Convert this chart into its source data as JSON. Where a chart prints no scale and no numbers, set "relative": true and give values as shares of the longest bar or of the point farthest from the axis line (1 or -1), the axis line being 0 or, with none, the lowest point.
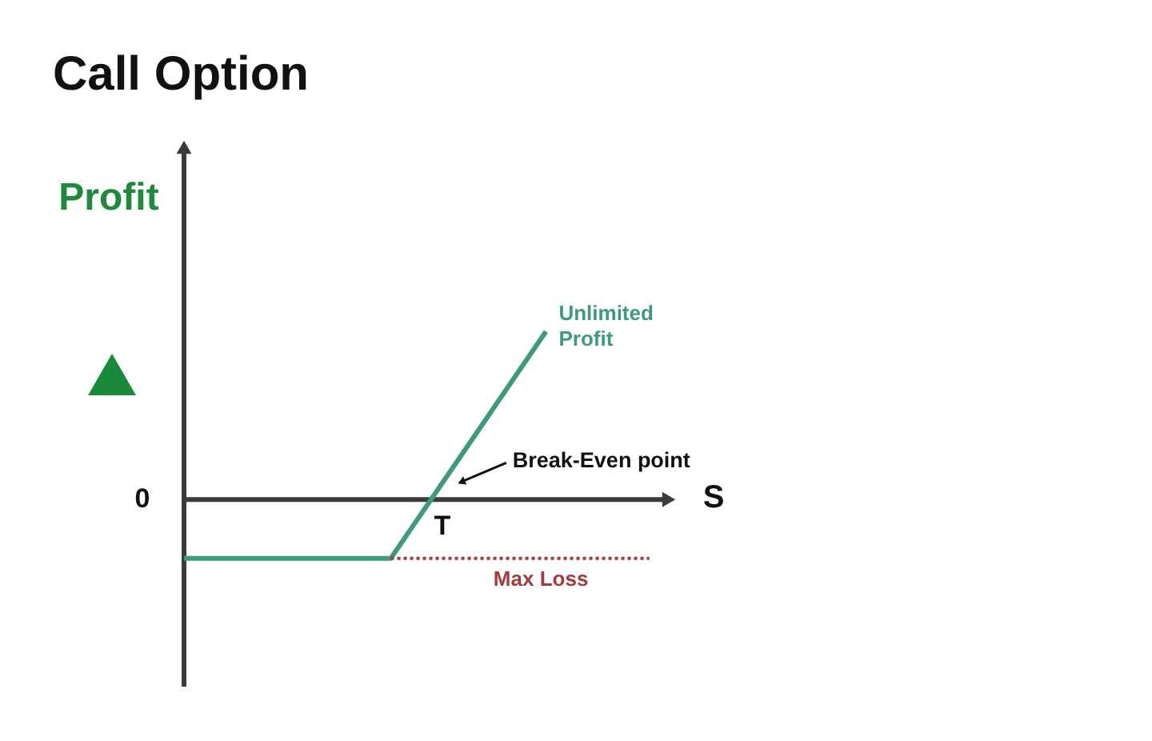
{
  "chart_data": {
    "type": "line",
    "title": "Call Option",
    "xlabel": "S",
    "ylabel": "Profit",
    "relative": true,
    "categories": [
      null,
      null,
      null,
      null,
      null,
      null,
      null,
      null,
      null,
      null
    ],
    "series": [
      {
        "color": "#3d9b7a",
        "line_style": "solid",
        "values": [
          -0.35,
          -0.35,
          -0.35,
          -0.35,
          -0.35,
          0.1,
          0.55,
          1,
          null,
          null
        ]
      },
      {
        "name": "Max Loss",
        "color": "#a33c3c",
        "line_style": "dotted",
        "values": [
          null,
          null,
          null,
          null,
          -0.35,
          -0.35,
          -0.35,
          -0.35,
          -0.35,
          -0.35
        ]
      }
    ],
    "annotations": [
      "Unlimited Profit",
      "Break-Even point",
      "0",
      {
        "text": "T",
        "y": 0
      }
    ]
  }
}
